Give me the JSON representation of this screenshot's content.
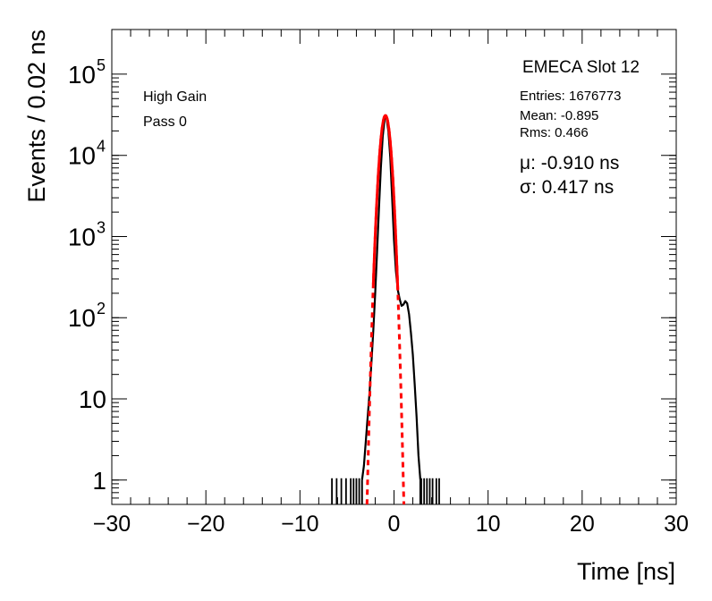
{
  "chart_data": {
    "type": "line",
    "title": "EMECA Slot 12",
    "xlabel": "Time [ns]",
    "ylabel": "Events / 0.02 ns",
    "xlim": [
      -30,
      30
    ],
    "ylim_log10": [
      -0.3,
      5.55
    ],
    "x_ticks": [
      {
        "v": -30,
        "label": "−30"
      },
      {
        "v": -20,
        "label": "−20"
      },
      {
        "v": -10,
        "label": "−10"
      },
      {
        "v": 0,
        "label": "0"
      },
      {
        "v": 10,
        "label": "10"
      },
      {
        "v": 20,
        "label": "20"
      },
      {
        "v": 30,
        "label": "30"
      }
    ],
    "y_ticks": [
      {
        "v": 1,
        "base": "1",
        "exp": ""
      },
      {
        "v": 10,
        "base": "10",
        "exp": ""
      },
      {
        "v": 100,
        "base": "10",
        "exp": "2"
      },
      {
        "v": 1000,
        "base": "10",
        "exp": "3"
      },
      {
        "v": 10000,
        "base": "10",
        "exp": "4"
      },
      {
        "v": 100000,
        "base": "10",
        "exp": "5"
      }
    ],
    "annotations": {
      "gain": "High Gain",
      "pass": "Pass 0",
      "entries": "Entries: 1676773",
      "mean": "Mean: -0.895",
      "rms": "Rms: 0.466",
      "mu": "μ: -0.910 ns",
      "sigma": "σ: 0.417 ns"
    },
    "series": [
      {
        "name": "data",
        "color": "#000000",
        "style": "histogram-line",
        "points": [
          [
            -3.4,
            1
          ],
          [
            -3.2,
            1.5
          ],
          [
            -3.0,
            3
          ],
          [
            -2.8,
            6
          ],
          [
            -2.6,
            12
          ],
          [
            -2.4,
            28
          ],
          [
            -2.2,
            70
          ],
          [
            -2.0,
            200
          ],
          [
            -1.8,
            650
          ],
          [
            -1.6,
            2200
          ],
          [
            -1.4,
            7000
          ],
          [
            -1.2,
            17000
          ],
          [
            -1.0,
            28000
          ],
          [
            -0.9,
            30500
          ],
          [
            -0.8,
            29000
          ],
          [
            -0.6,
            20000
          ],
          [
            -0.4,
            9500
          ],
          [
            -0.2,
            3000
          ],
          [
            0.0,
            900
          ],
          [
            0.2,
            380
          ],
          [
            0.4,
            220
          ],
          [
            0.6,
            170
          ],
          [
            0.8,
            140
          ],
          [
            1.0,
            145
          ],
          [
            1.2,
            160
          ],
          [
            1.4,
            150
          ],
          [
            1.6,
            110
          ],
          [
            1.8,
            65
          ],
          [
            2.0,
            35
          ],
          [
            2.2,
            15
          ],
          [
            2.4,
            6
          ],
          [
            2.6,
            2
          ],
          [
            2.8,
            1
          ]
        ],
        "isolated_single_counts_x": [
          -6.6,
          -6.1,
          -5.6,
          -5.1,
          -4.6,
          -4.3,
          -4.0,
          -3.7,
          2.9,
          3.2,
          3.5,
          3.8,
          4.1,
          4.5,
          4.8
        ]
      },
      {
        "name": "gaussian-fit",
        "color": "#ff0000",
        "style": "fit",
        "amplitude": 31000,
        "mu": -0.91,
        "sigma": 0.417,
        "dashed_range": [
          -2.9,
          1.1
        ],
        "solid_range": [
          -2.2,
          0.4
        ]
      }
    ]
  }
}
